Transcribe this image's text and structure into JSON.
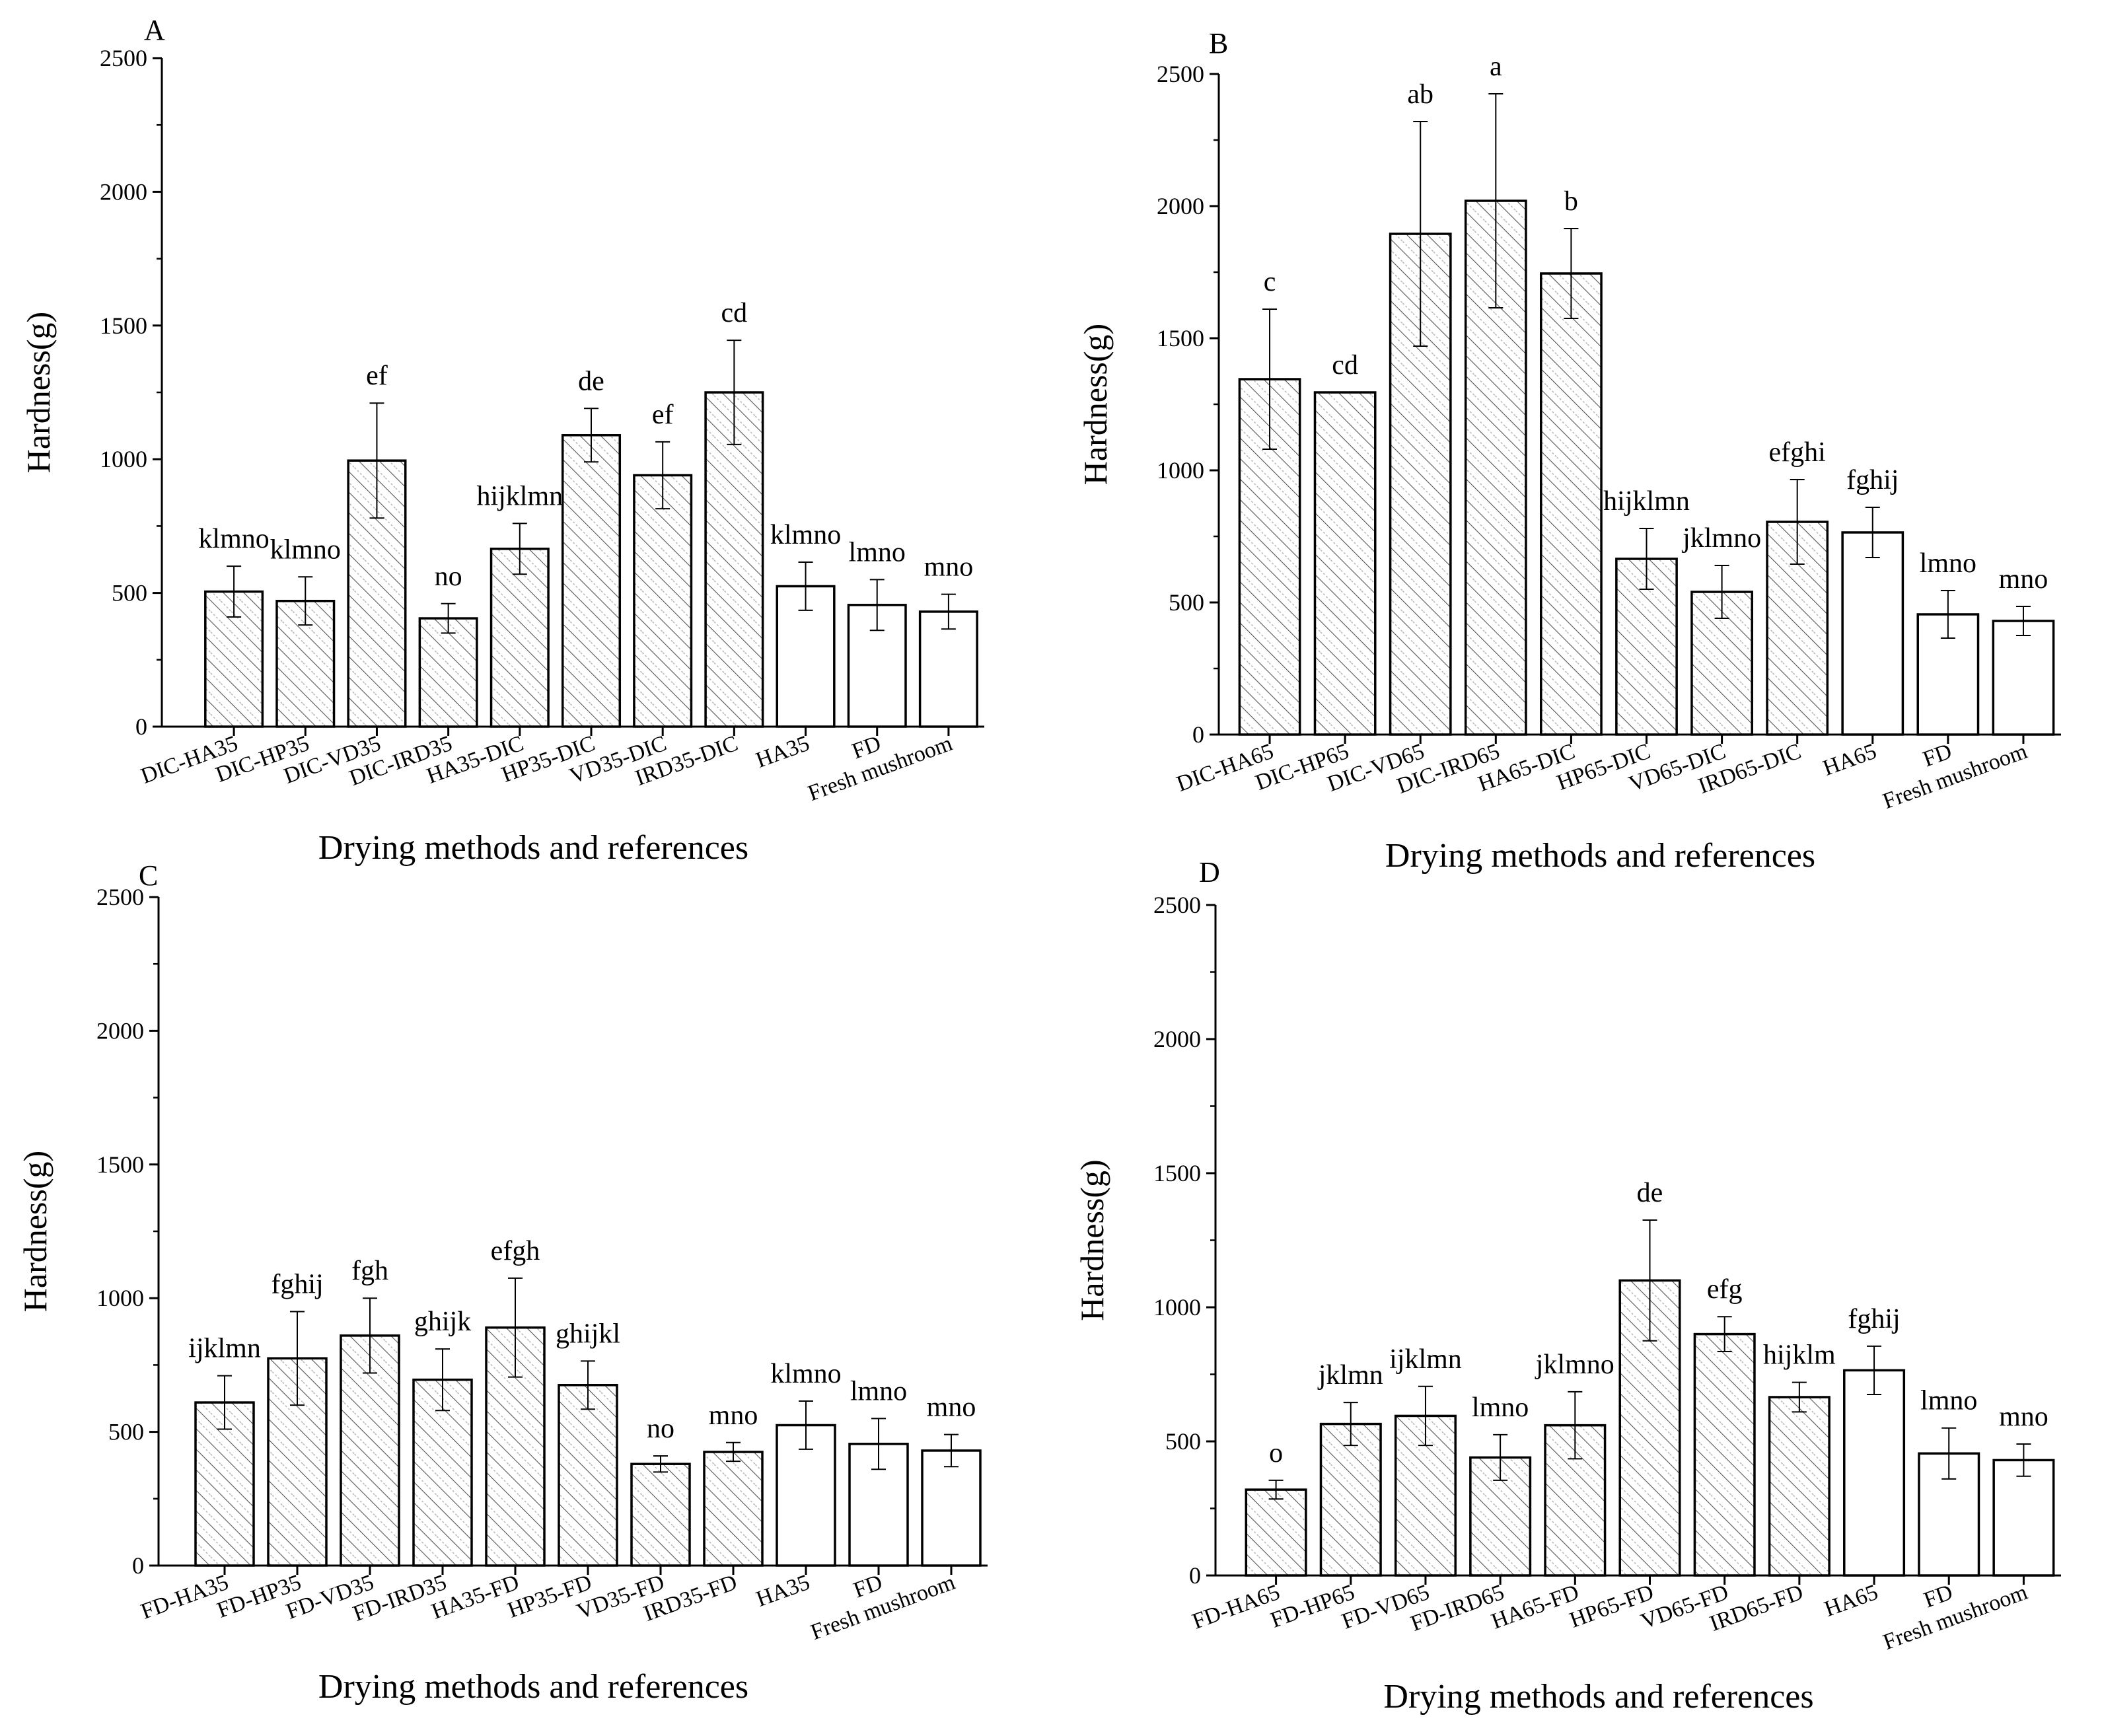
{
  "chart_data": [
    {
      "panel": "A",
      "type": "bar",
      "xlabel": "Drying methods and references",
      "ylabel": "Hardness(g)",
      "ylim": [
        0,
        2500
      ],
      "yticks": [
        0,
        500,
        1000,
        1500,
        2000,
        2500
      ],
      "categories": [
        "DIC-HA35",
        "DIC-HP35",
        "DIC-VD35",
        "DIC-IRD35",
        "HA35-DIC",
        "HP35-DIC",
        "VD35-DIC",
        "IRD35-DIC",
        "HA35",
        "FD",
        "Fresh mushroom"
      ],
      "values": [
        505,
        470,
        995,
        405,
        665,
        1090,
        940,
        1250,
        525,
        455,
        430
      ],
      "errors": [
        95,
        90,
        215,
        55,
        95,
        100,
        125,
        195,
        90,
        95,
        65
      ],
      "letters": [
        "klmno",
        "klmno",
        "ef",
        "no",
        "hijklmn",
        "de",
        "ef",
        "cd",
        "klmno",
        "lmno",
        "mno"
      ],
      "hatched": [
        true,
        true,
        true,
        true,
        true,
        true,
        true,
        true,
        false,
        false,
        false
      ]
    },
    {
      "panel": "B",
      "type": "bar",
      "xlabel": "Drying methods and references",
      "ylabel": "Hardness(g)",
      "ylim": [
        0,
        2500
      ],
      "yticks": [
        0,
        500,
        1000,
        1500,
        2000,
        2500
      ],
      "categories": [
        "DIC-HA65",
        "DIC-HP65",
        "DIC-VD65",
        "DIC-IRD65",
        "HA65-DIC",
        "HP65-DIC",
        "VD65-DIC",
        "IRD65-DIC",
        "HA65",
        "FD",
        "Fresh mushroom"
      ],
      "values": [
        1345,
        1295,
        1895,
        2020,
        1745,
        665,
        540,
        805,
        765,
        455,
        430
      ],
      "errors": [
        265,
        0,
        425,
        405,
        170,
        115,
        100,
        160,
        95,
        90,
        55
      ],
      "letters": [
        "c",
        "cd",
        "ab",
        "a",
        "b",
        "hijklmn",
        "jklmno",
        "efghi",
        "fghij",
        "lmno",
        "mno"
      ],
      "hatched": [
        true,
        true,
        true,
        true,
        true,
        true,
        true,
        true,
        false,
        false,
        false
      ]
    },
    {
      "panel": "C",
      "type": "bar",
      "xlabel": "Drying methods and references",
      "ylabel": "Hardness(g)",
      "ylim": [
        0,
        2500
      ],
      "yticks": [
        0,
        500,
        1000,
        1500,
        2000,
        2500
      ],
      "categories": [
        "FD-HA35",
        "FD-HP35",
        "FD-VD35",
        "FD-IRD35",
        "HA35-FD",
        "HP35-FD",
        "VD35-FD",
        "IRD35-FD",
        "HA35",
        "FD",
        "Fresh mushroom"
      ],
      "values": [
        610,
        775,
        860,
        695,
        890,
        675,
        380,
        425,
        525,
        455,
        430
      ],
      "errors": [
        100,
        175,
        140,
        115,
        185,
        90,
        30,
        35,
        90,
        95,
        60
      ],
      "letters": [
        "ijklmn",
        "fghij",
        "fgh",
        "ghijk",
        "efgh",
        "ghijkl",
        "no",
        "mno",
        "klmno",
        "lmno",
        "mno"
      ],
      "hatched": [
        true,
        true,
        true,
        true,
        true,
        true,
        true,
        true,
        false,
        false,
        false
      ]
    },
    {
      "panel": "D",
      "type": "bar",
      "xlabel": "Drying methods and references",
      "ylabel": "Hardness(g)",
      "ylim": [
        0,
        2500
      ],
      "yticks": [
        0,
        500,
        1000,
        1500,
        2000,
        2500
      ],
      "categories": [
        "FD-HA65",
        "FD-HP65",
        "FD-VD65",
        "FD-IRD65",
        "HA65-FD",
        "HP65-FD",
        "VD65-FD",
        "IRD65-FD",
        "HA65",
        "FD",
        "Fresh mushroom"
      ],
      "values": [
        320,
        565,
        595,
        440,
        560,
        1100,
        900,
        665,
        765,
        455,
        430
      ],
      "errors": [
        35,
        80,
        110,
        85,
        125,
        225,
        65,
        55,
        90,
        95,
        60
      ],
      "letters": [
        "o",
        "jklmn",
        "ijklmn",
        "lmno",
        "jklmno",
        "de",
        "efg",
        "hijklm",
        "fghij",
        "lmno",
        "mno"
      ],
      "hatched": [
        true,
        true,
        true,
        true,
        true,
        true,
        true,
        true,
        false,
        false,
        false
      ]
    }
  ]
}
